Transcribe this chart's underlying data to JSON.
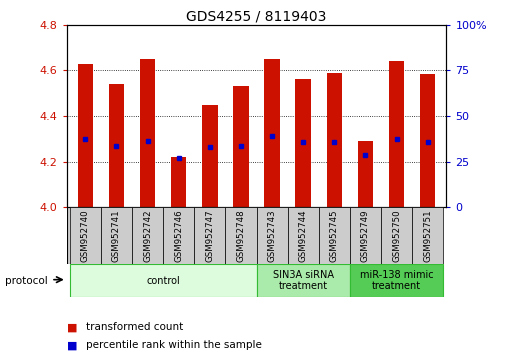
{
  "title": "GDS4255 / 8119403",
  "samples": [
    "GSM952740",
    "GSM952741",
    "GSM952742",
    "GSM952746",
    "GSM952747",
    "GSM952748",
    "GSM952743",
    "GSM952744",
    "GSM952745",
    "GSM952749",
    "GSM952750",
    "GSM952751"
  ],
  "bar_tops": [
    4.63,
    4.54,
    4.65,
    4.22,
    4.45,
    4.53,
    4.65,
    4.56,
    4.59,
    4.29,
    4.64,
    4.585
  ],
  "blue_dots": [
    4.3,
    4.27,
    4.29,
    4.215,
    4.265,
    4.27,
    4.31,
    4.285,
    4.285,
    4.23,
    4.3,
    4.285
  ],
  "bar_base": 4.0,
  "ylim_left": [
    4.0,
    4.8
  ],
  "ylim_right": [
    0,
    100
  ],
  "yticks_left": [
    4.0,
    4.2,
    4.4,
    4.6,
    4.8
  ],
  "yticks_right": [
    0,
    25,
    50,
    75,
    100
  ],
  "bar_color": "#CC1100",
  "dot_color": "#0000CC",
  "grid_color": "#000000",
  "bg_color": "#FFFFFF",
  "plot_bg": "#FFFFFF",
  "left_tick_color": "#CC1100",
  "right_tick_color": "#0000CC",
  "groups": [
    {
      "label": "control",
      "start": 0,
      "end": 6,
      "color": "#DDFCDD",
      "border": "#33BB33"
    },
    {
      "label": "SIN3A siRNA\ntreatment",
      "start": 6,
      "end": 9,
      "color": "#AAEAAA",
      "border": "#33BB33"
    },
    {
      "label": "miR-138 mimic\ntreatment",
      "start": 9,
      "end": 12,
      "color": "#55CC55",
      "border": "#33BB33"
    }
  ],
  "protocol_label": "protocol",
  "legend1": "transformed count",
  "legend2": "percentile rank within the sample",
  "bar_width": 0.5,
  "title_size": 10,
  "label_box_color": "#CCCCCC",
  "label_box_border": "#888888"
}
